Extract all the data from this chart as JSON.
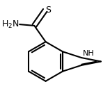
{
  "background": "#ffffff",
  "line_color": "#000000",
  "line_width": 1.5,
  "text_color": "#000000",
  "font_size": 9,
  "nh_font_size": 8,
  "dbo": 0.022
}
